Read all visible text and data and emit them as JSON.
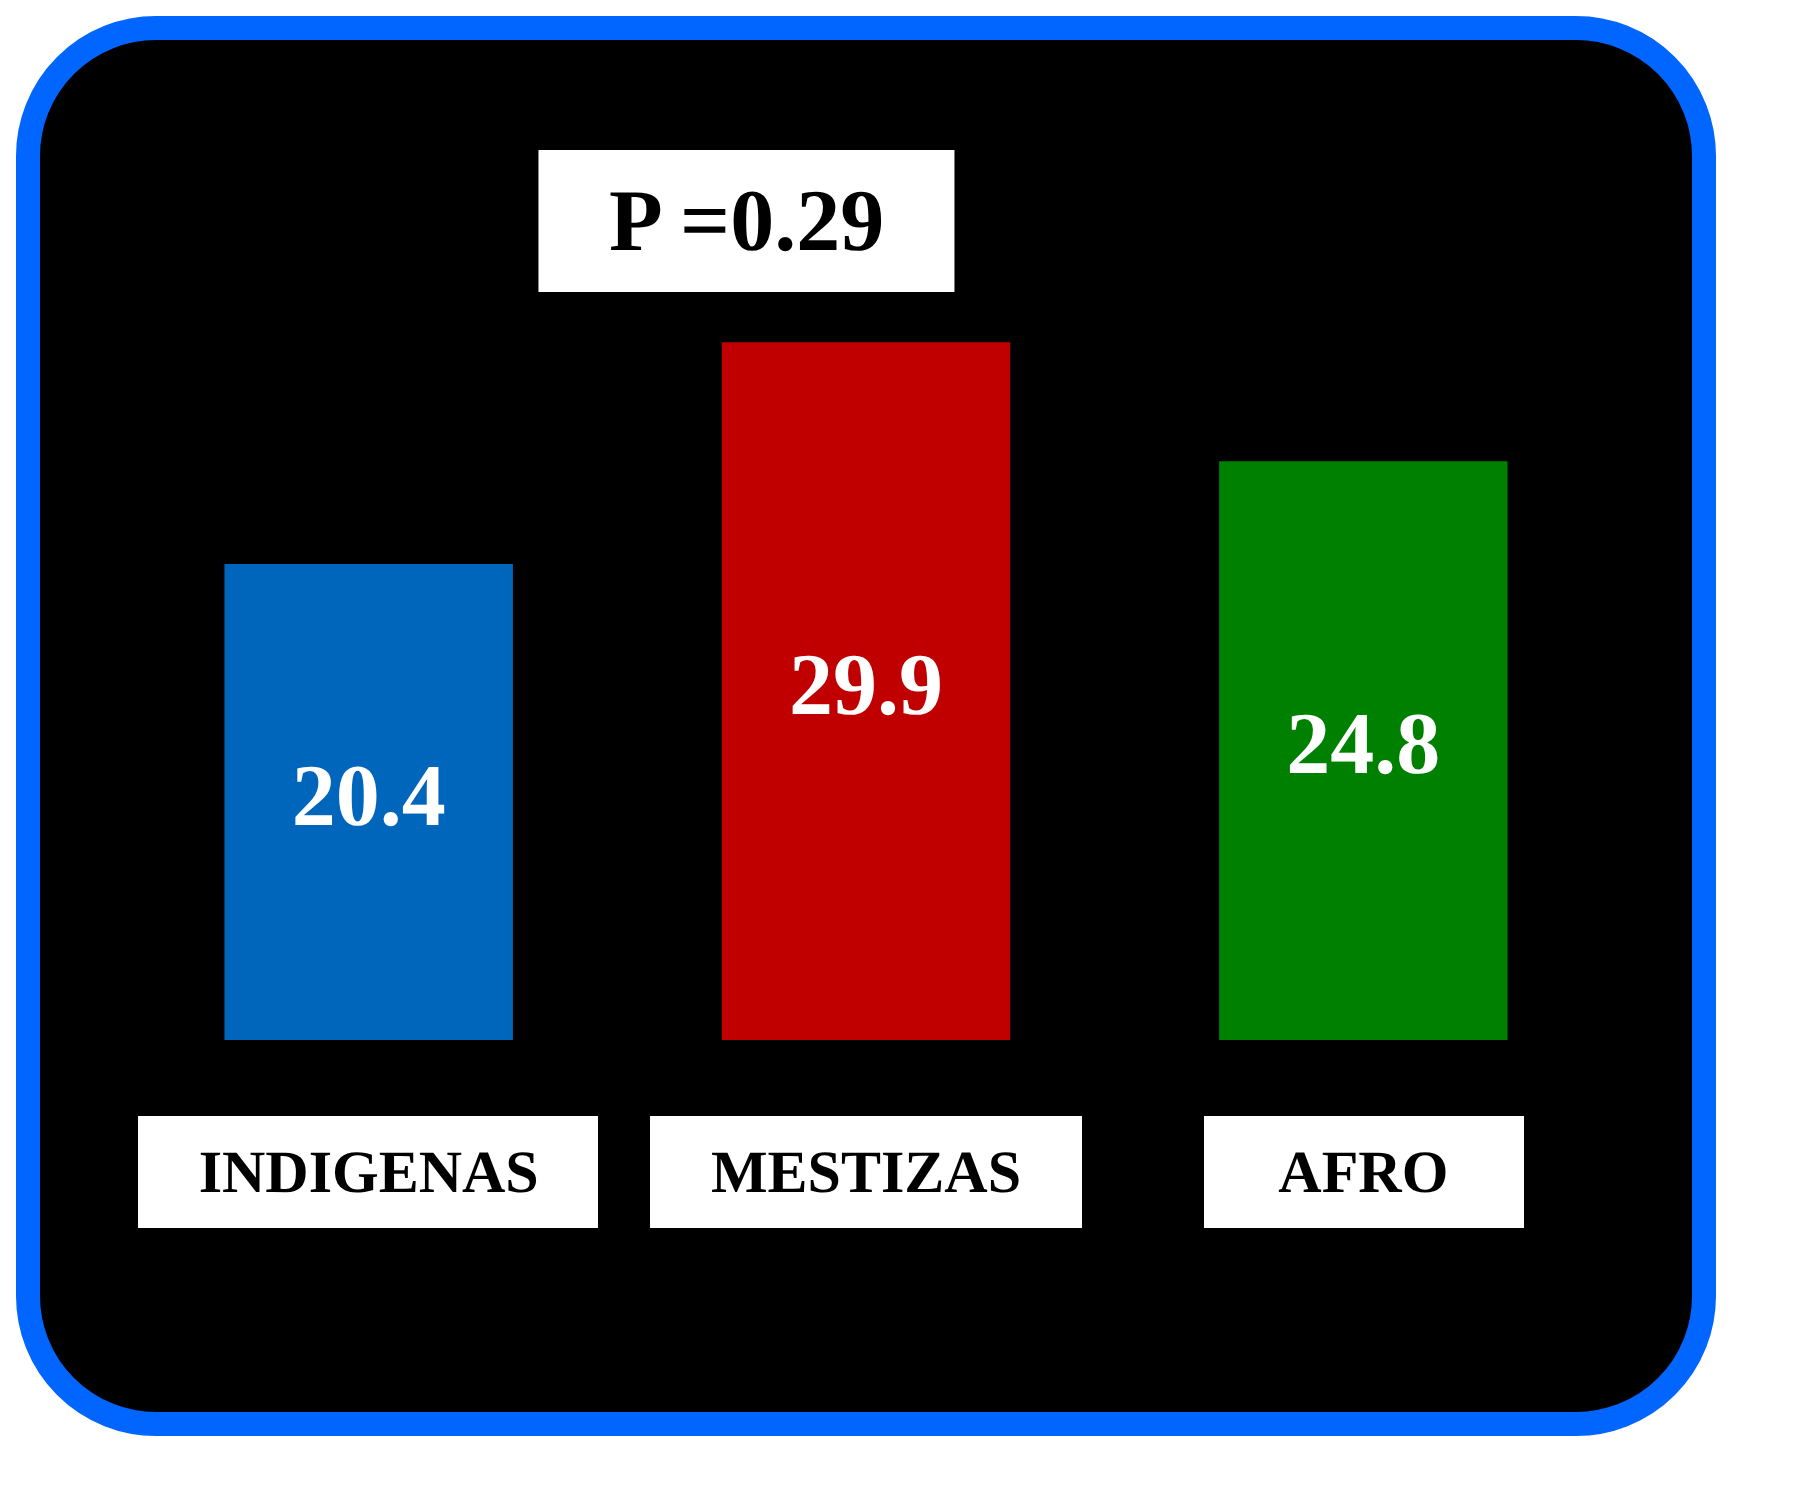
{
  "chart_data": {
    "type": "bar",
    "categories": [
      "INDIGENAS",
      "MESTIZAS",
      "AFRO"
    ],
    "values": [
      20.4,
      29.9,
      24.8
    ],
    "colors": [
      "#0066bb",
      "#c00000",
      "#008000"
    ],
    "data_labels": true,
    "legend": false,
    "annotations": [
      "P =0.29"
    ]
  }
}
